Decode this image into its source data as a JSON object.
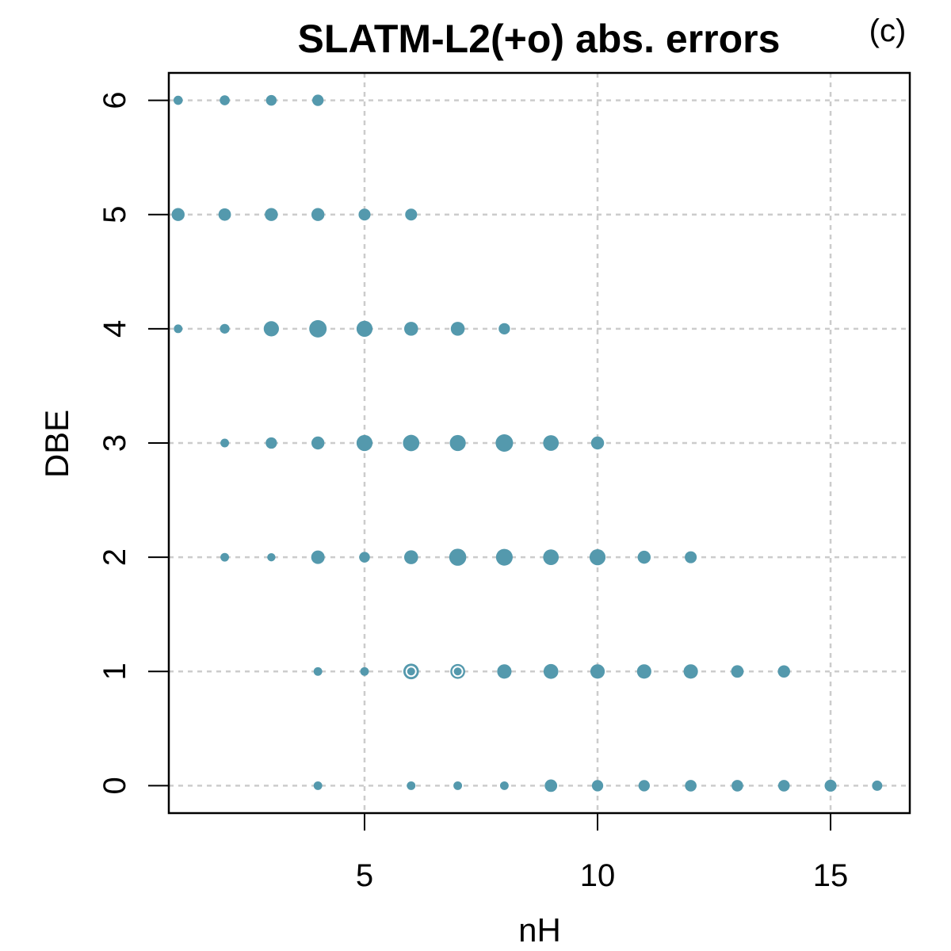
{
  "chart_data": {
    "type": "scatter",
    "title": "SLATM-L2(+o) abs. errors",
    "panel_label": "(c)",
    "xlabel": "nH",
    "ylabel": "DBE",
    "xlim": [
      0.8,
      16.7
    ],
    "ylim": [
      -0.24,
      6.24
    ],
    "x_ticks": [
      5,
      10,
      15
    ],
    "y_ticks": [
      0,
      1,
      2,
      3,
      4,
      5,
      6
    ],
    "grid": true,
    "point_color": "#5499ad",
    "size_encoding": "marker area proportional to error magnitude",
    "points": [
      {
        "x": 1,
        "y": 6,
        "s": 0.15
      },
      {
        "x": 2,
        "y": 6,
        "s": 0.2
      },
      {
        "x": 3,
        "y": 6,
        "s": 0.25
      },
      {
        "x": 4,
        "y": 6,
        "s": 0.3
      },
      {
        "x": 1,
        "y": 5,
        "s": 0.45
      },
      {
        "x": 2,
        "y": 5,
        "s": 0.4
      },
      {
        "x": 3,
        "y": 5,
        "s": 0.45
      },
      {
        "x": 4,
        "y": 5,
        "s": 0.45
      },
      {
        "x": 5,
        "y": 5,
        "s": 0.35
      },
      {
        "x": 6,
        "y": 5,
        "s": 0.35
      },
      {
        "x": 1,
        "y": 4,
        "s": 0.12
      },
      {
        "x": 2,
        "y": 4,
        "s": 0.18
      },
      {
        "x": 3,
        "y": 4,
        "s": 0.7
      },
      {
        "x": 4,
        "y": 4,
        "s": 1.0
      },
      {
        "x": 5,
        "y": 4,
        "s": 0.8
      },
      {
        "x": 6,
        "y": 4,
        "s": 0.55
      },
      {
        "x": 7,
        "y": 4,
        "s": 0.55
      },
      {
        "x": 8,
        "y": 4,
        "s": 0.3
      },
      {
        "x": 2,
        "y": 3,
        "s": 0.12
      },
      {
        "x": 3,
        "y": 3,
        "s": 0.3
      },
      {
        "x": 4,
        "y": 3,
        "s": 0.45
      },
      {
        "x": 5,
        "y": 3,
        "s": 0.8
      },
      {
        "x": 6,
        "y": 3,
        "s": 0.85
      },
      {
        "x": 7,
        "y": 3,
        "s": 0.8
      },
      {
        "x": 8,
        "y": 3,
        "s": 1.0
      },
      {
        "x": 9,
        "y": 3,
        "s": 0.75
      },
      {
        "x": 10,
        "y": 3,
        "s": 0.45
      },
      {
        "x": 2,
        "y": 2,
        "s": 0.12
      },
      {
        "x": 3,
        "y": 2,
        "s": 0.1
      },
      {
        "x": 4,
        "y": 2,
        "s": 0.5
      },
      {
        "x": 5,
        "y": 2,
        "s": 0.25
      },
      {
        "x": 6,
        "y": 2,
        "s": 0.55
      },
      {
        "x": 7,
        "y": 2,
        "s": 0.95
      },
      {
        "x": 8,
        "y": 2,
        "s": 0.9
      },
      {
        "x": 9,
        "y": 2,
        "s": 0.75
      },
      {
        "x": 10,
        "y": 2,
        "s": 0.8
      },
      {
        "x": 11,
        "y": 2,
        "s": 0.45
      },
      {
        "x": 12,
        "y": 2,
        "s": 0.35
      },
      {
        "x": 4,
        "y": 1,
        "s": 0.12
      },
      {
        "x": 5,
        "y": 1,
        "s": 0.12
      },
      {
        "x": 6,
        "y": 1,
        "s": 0.75
      },
      {
        "x": 7,
        "y": 1,
        "s": 0.65
      },
      {
        "x": 8,
        "y": 1,
        "s": 0.6
      },
      {
        "x": 9,
        "y": 1,
        "s": 0.65
      },
      {
        "x": 10,
        "y": 1,
        "s": 0.6
      },
      {
        "x": 11,
        "y": 1,
        "s": 0.6
      },
      {
        "x": 12,
        "y": 1,
        "s": 0.6
      },
      {
        "x": 13,
        "y": 1,
        "s": 0.4
      },
      {
        "x": 14,
        "y": 1,
        "s": 0.38
      },
      {
        "x": 4,
        "y": 0,
        "s": 0.12
      },
      {
        "x": 6,
        "y": 0,
        "s": 0.12
      },
      {
        "x": 7,
        "y": 0,
        "s": 0.12
      },
      {
        "x": 8,
        "y": 0,
        "s": 0.12
      },
      {
        "x": 9,
        "y": 0,
        "s": 0.4
      },
      {
        "x": 10,
        "y": 0,
        "s": 0.3
      },
      {
        "x": 11,
        "y": 0,
        "s": 0.3
      },
      {
        "x": 12,
        "y": 0,
        "s": 0.32
      },
      {
        "x": 13,
        "y": 0,
        "s": 0.32
      },
      {
        "x": 14,
        "y": 0,
        "s": 0.32
      },
      {
        "x": 15,
        "y": 0,
        "s": 0.35
      },
      {
        "x": 16,
        "y": 0,
        "s": 0.22
      }
    ],
    "highlighted_points": [
      {
        "x": 6,
        "y": 1
      },
      {
        "x": 7,
        "y": 1
      }
    ]
  }
}
